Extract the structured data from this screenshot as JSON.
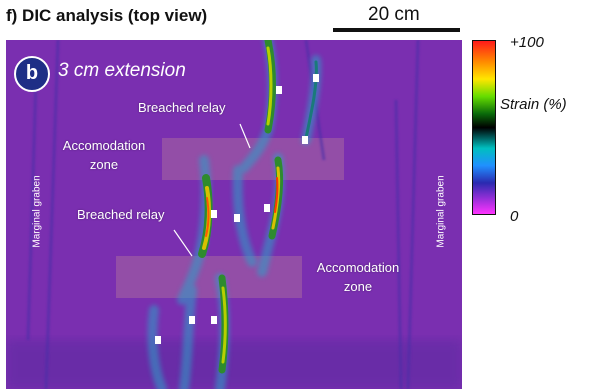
{
  "header": {
    "panel_title": "f) DIC analysis (top view)",
    "scale_label": "20 cm"
  },
  "map": {
    "badge": "b",
    "extension_label": "3 cm extension",
    "labels": {
      "breached_relay_upper": "Breached relay",
      "breached_relay_lower": "Breached relay",
      "accomodation_upper": [
        "Accomodation",
        "zone"
      ],
      "accomodation_lower": [
        "Accomodation",
        "zone"
      ],
      "marginal_graben_left": "Marginal graben",
      "marginal_graben_right": "Marginal graben"
    }
  },
  "colorbar": {
    "max_label": "+100",
    "min_label": "0",
    "title": "Strain (%)",
    "colors": [
      "#ff1a1a",
      "#ff8a00",
      "#ffe600",
      "#66dd00",
      "#0a6b0a",
      "#000000",
      "#00bfbf",
      "#2090ff",
      "#2a2ab0",
      "#ff33ff"
    ]
  },
  "colors": {
    "background": "#7a2fb0",
    "shading": "#a868a0"
  }
}
